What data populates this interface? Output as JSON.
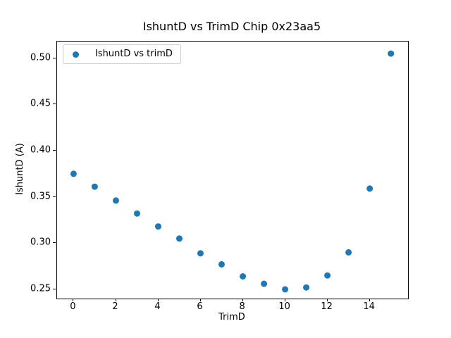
{
  "figure": {
    "background": "#ffffff",
    "spine_color": "#000000",
    "legend_border_color": "#cccccc"
  },
  "chart_data": {
    "type": "scatter",
    "title": "IshuntD vs TrimD Chip 0x23aa5",
    "xlabel": "TrimD",
    "ylabel": "IshuntD (A)",
    "legend": [
      "IshuntD vs trimD"
    ],
    "legend_position": "upper left",
    "marker_color": "#1f77b4",
    "grid": false,
    "x": [
      0,
      1,
      2,
      3,
      4,
      5,
      6,
      7,
      8,
      9,
      10,
      11,
      12,
      13,
      14,
      15
    ],
    "y": [
      0.375,
      0.361,
      0.346,
      0.332,
      0.318,
      0.305,
      0.289,
      0.277,
      0.264,
      0.256,
      0.25,
      0.252,
      0.265,
      0.29,
      0.359,
      0.505
    ],
    "xlim": [
      -0.78,
      15.81
    ],
    "ylim": [
      0.24,
      0.518
    ],
    "xticks": [
      0,
      2,
      4,
      6,
      8,
      10,
      12,
      14
    ],
    "yticks": [
      0.25,
      0.3,
      0.35,
      0.4,
      0.45,
      0.5
    ],
    "ytick_decimals": 2
  }
}
